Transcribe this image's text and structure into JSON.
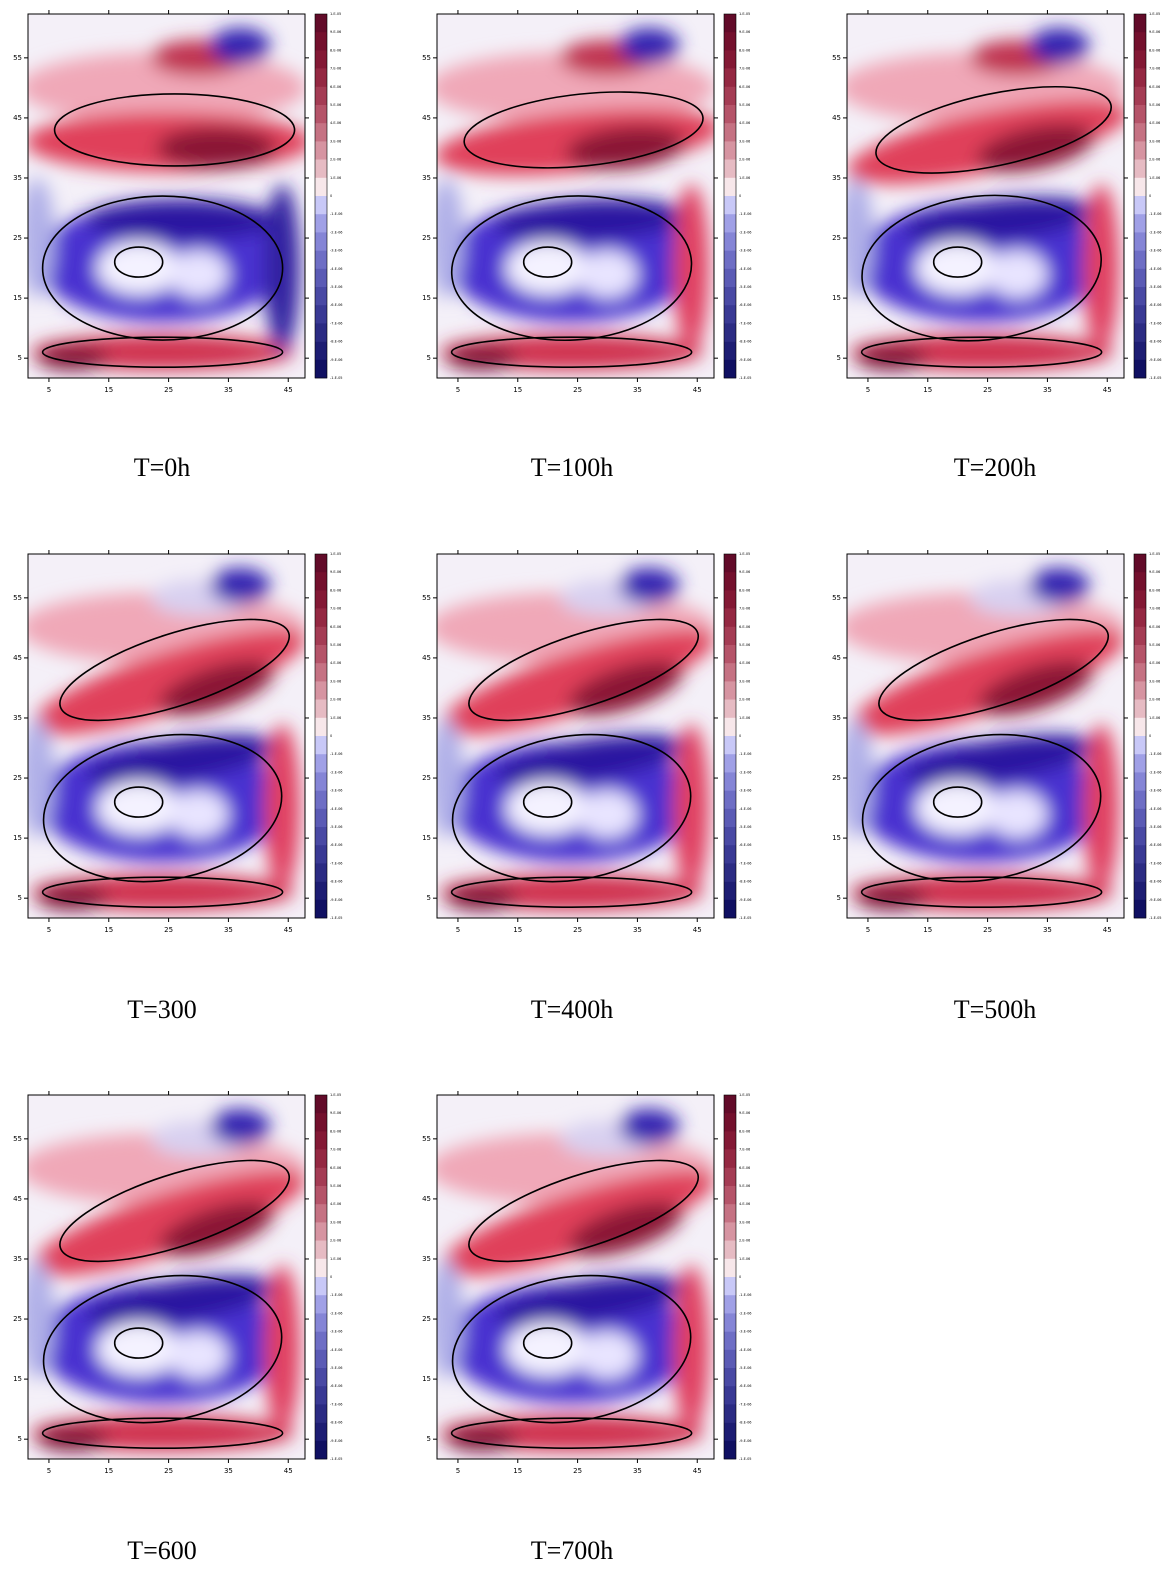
{
  "figure": {
    "xlim": [
      1.5,
      47.8
    ],
    "ylim": [
      1.7,
      62.3
    ],
    "xticks": [
      5,
      15,
      25,
      35,
      45
    ],
    "yticks": [
      5,
      15,
      25,
      35,
      45,
      55
    ],
    "colorbar_labels": [
      "1.E-05",
      "9.E-06",
      "8.E-06",
      "7.E-06",
      "6.E-06",
      "5.E-06",
      "4.E-06",
      "3.E-06",
      "2.E-06",
      "1.E-06",
      "0",
      "-1.E-06",
      "-2.E-06",
      "-3.E-06",
      "-4.E-06",
      "-5.E-06",
      "-6.E-06",
      "-7.E-06",
      "-8.E-06",
      "-9.E-06",
      "-1.E-05"
    ],
    "panels": [
      {
        "caption": "T=0h"
      },
      {
        "caption": "T=100h"
      },
      {
        "caption": "T=200h"
      },
      {
        "caption": "T=300"
      },
      {
        "caption": "T=400h"
      },
      {
        "caption": "T=500h"
      },
      {
        "caption": "T=600"
      },
      {
        "caption": "T=700h"
      }
    ]
  }
}
